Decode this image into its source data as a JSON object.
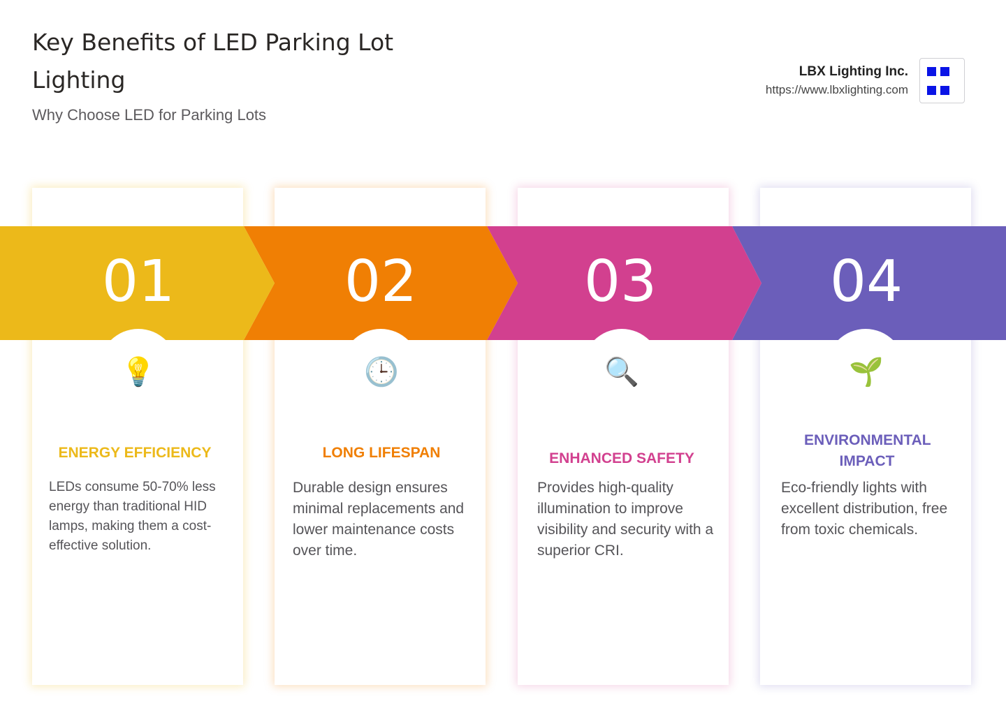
{
  "header": {
    "title": "Key Benefits of LED Parking Lot Lighting",
    "subtitle": "Why Choose LED for Parking Lots"
  },
  "brand": {
    "name": "LBX Lighting Inc.",
    "url": "https://www.lbxlighting.com"
  },
  "steps": [
    {
      "number": "01",
      "icon": "light-bulb-icon",
      "glyph": "💡",
      "title": "ENERGY EFFICIENCY",
      "description": "LEDs consume 50-70% less energy than traditional HID lamps, making them a cost-effective solution.",
      "color": "#ECB91A"
    },
    {
      "number": "02",
      "icon": "clock-icon",
      "glyph": "🕒",
      "title": "LONG LIFESPAN",
      "description": "Durable design ensures minimal replacements and lower maintenance costs over time.",
      "color": "#F07F04"
    },
    {
      "number": "03",
      "icon": "magnifying-glass-icon",
      "glyph": "🔍",
      "title": "ENHANCED SAFETY",
      "description": "Provides high-quality illumination to improve visibility and security with a superior CRI.",
      "color": "#D2408F"
    },
    {
      "number": "04",
      "icon": "seedling-icon",
      "glyph": "🌱",
      "title": "ENVIRONMENTAL IMPACT",
      "description": "Eco-friendly lights with excellent distribution, free from toxic chemicals.",
      "color": "#6B5EBA"
    }
  ]
}
